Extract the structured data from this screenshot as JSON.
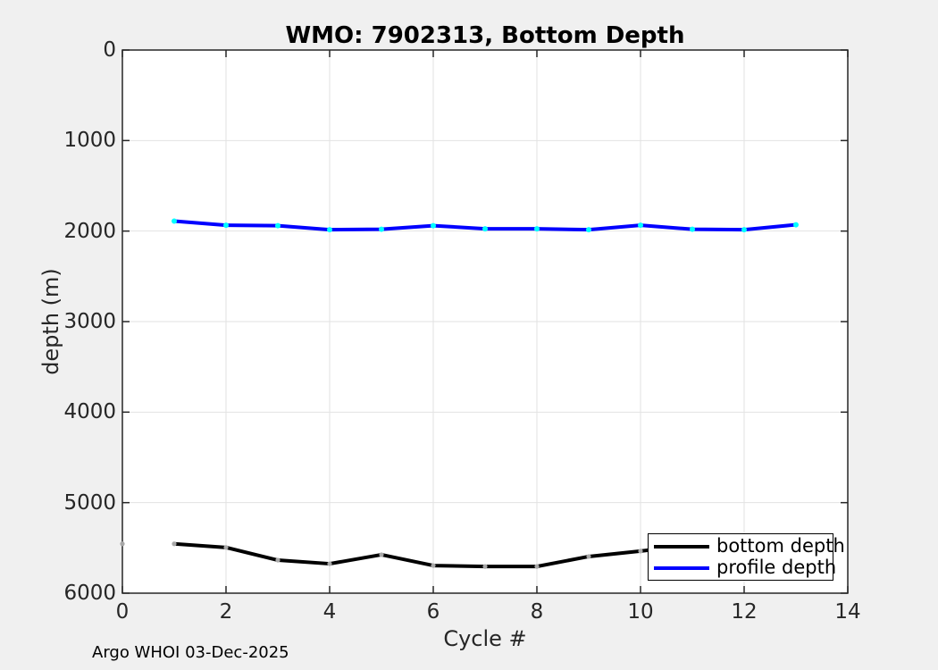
{
  "annotations": {
    "footer": "Argo WHOI 03-Dec-2025"
  },
  "chart_data": {
    "type": "line",
    "title": "WMO: 7902313, Bottom Depth",
    "xlabel": "Cycle #",
    "ylabel": "depth (m)",
    "xlim": [
      0,
      14
    ],
    "ylim": [
      0,
      6000
    ],
    "y_axis_reversed": true,
    "grid": true,
    "x_ticks": [
      0,
      2,
      4,
      6,
      8,
      10,
      12,
      14
    ],
    "y_ticks": [
      0,
      1000,
      2000,
      3000,
      4000,
      5000,
      6000
    ],
    "legend_position": "bottom-right",
    "colors": {
      "figure_background": "#f0f0f0",
      "plot_background": "#ffffff",
      "grid": "#e2e2e2",
      "axis": "#262626",
      "text": "#262626"
    },
    "series": [
      {
        "name": "bottom depth",
        "color": "#000000",
        "marker_color": "#a8a8a8",
        "x": [
          0,
          1,
          2,
          3,
          4,
          5,
          6,
          7,
          8,
          9,
          10
        ],
        "y": [
          5455,
          5455,
          5495,
          5635,
          5675,
          5575,
          5695,
          5705,
          5705,
          5595,
          5535
        ],
        "line_starts_at_index": 1,
        "extends_behind_legend": true
      },
      {
        "name": "profile depth",
        "color": "#0000ff",
        "marker_color": "#00ffff",
        "x": [
          1,
          2,
          3,
          4,
          5,
          6,
          7,
          8,
          9,
          10,
          11,
          12,
          13
        ],
        "y": [
          1890,
          1935,
          1940,
          1985,
          1980,
          1940,
          1975,
          1975,
          1985,
          1935,
          1980,
          1985,
          1930
        ],
        "line_starts_at_index": 0,
        "extends_behind_legend": false
      }
    ]
  }
}
